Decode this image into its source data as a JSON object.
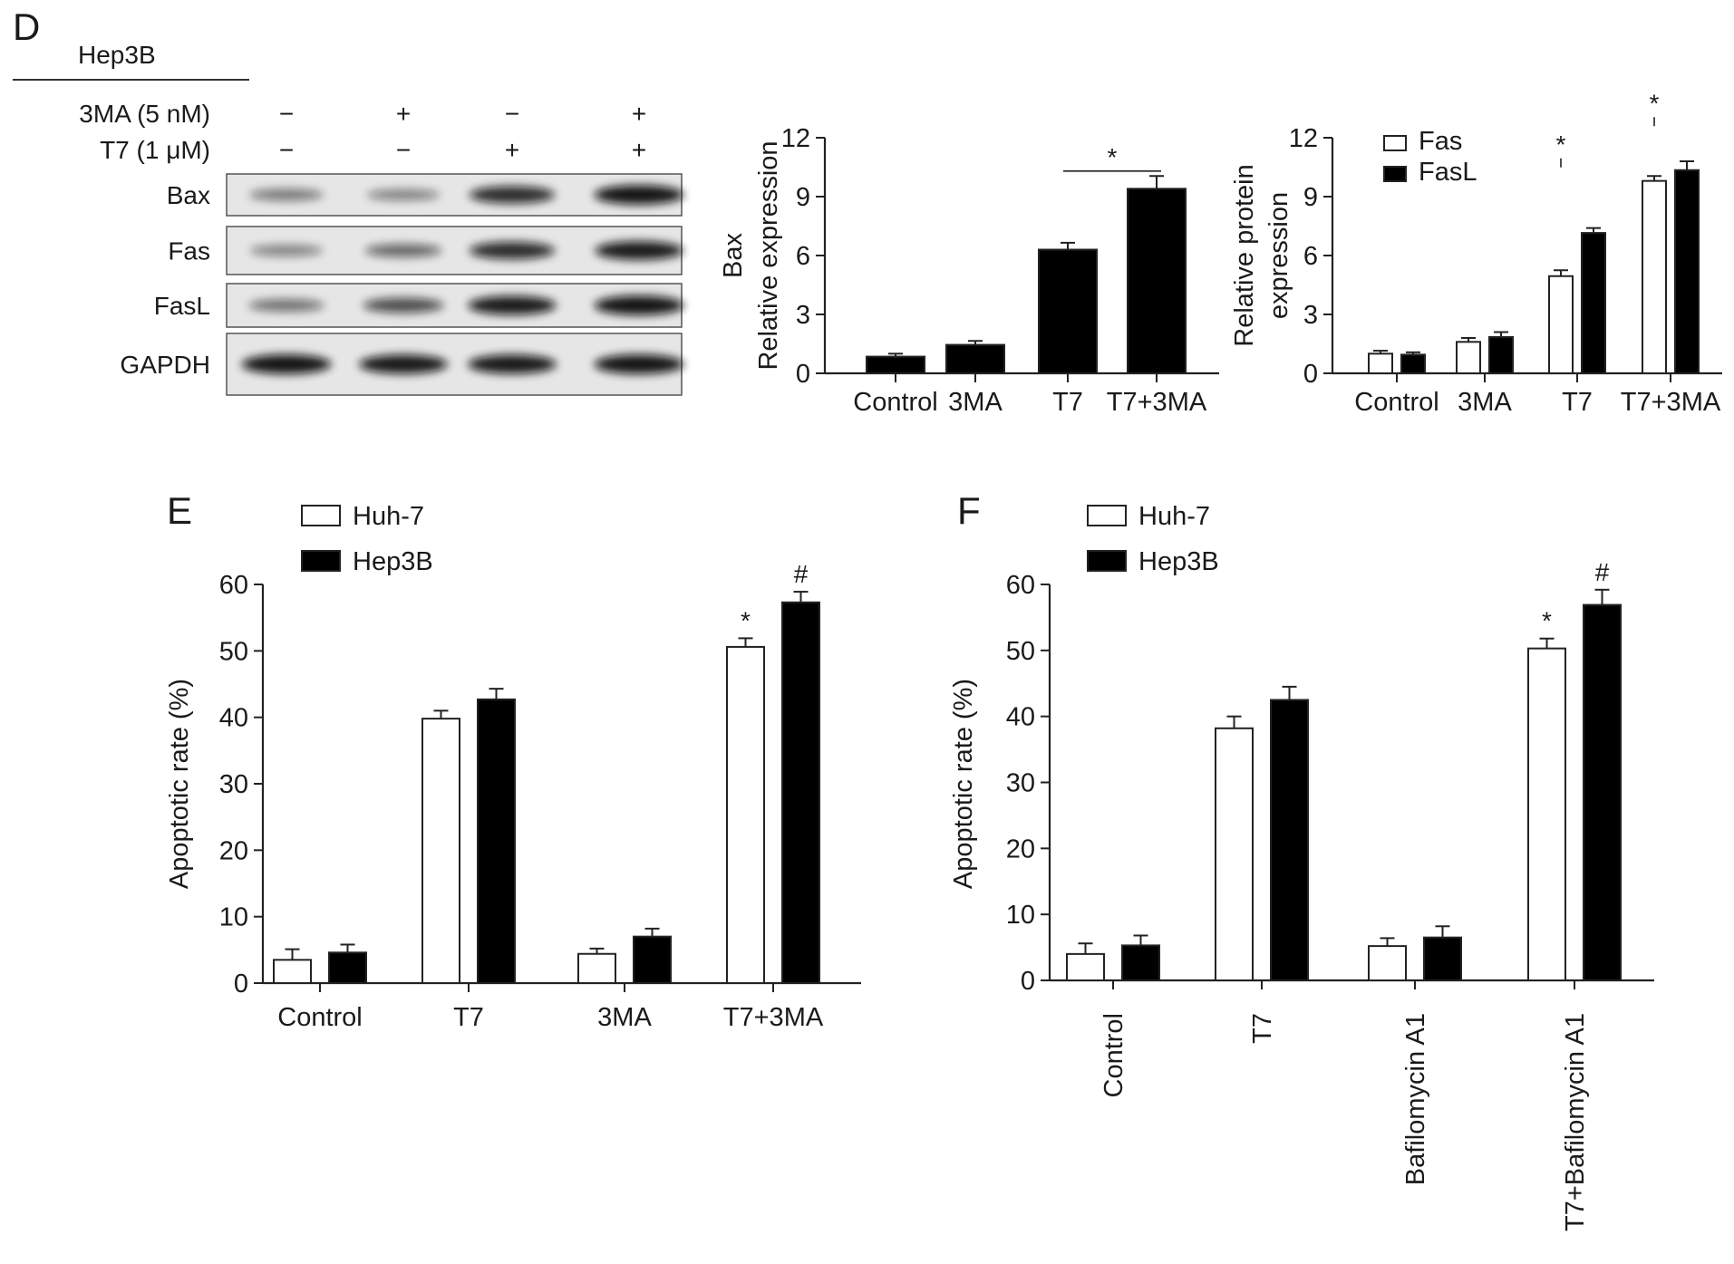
{
  "panel_labels": {
    "d": "D",
    "e": "E",
    "f": "F"
  },
  "western_blot": {
    "cell_line": "Hep3B",
    "conditions": [
      {
        "name": "3MA (5 nM)",
        "marks": [
          "−",
          "+",
          "−",
          "+"
        ]
      },
      {
        "name": "T7 (1 μM)",
        "marks": [
          "−",
          "−",
          "+",
          "+"
        ]
      }
    ],
    "blots": [
      {
        "name": "Bax",
        "intensity": [
          0.35,
          0.3,
          0.8,
          0.95
        ]
      },
      {
        "name": "Fas",
        "intensity": [
          0.3,
          0.45,
          0.8,
          0.9
        ]
      },
      {
        "name": "FasL",
        "intensity": [
          0.4,
          0.6,
          0.9,
          0.95
        ]
      },
      {
        "name": "GAPDH",
        "intensity": [
          0.95,
          0.92,
          0.92,
          0.95
        ]
      }
    ],
    "colors": {
      "band": "#111111",
      "background": "#e6e6e6"
    }
  },
  "chart_data": [
    {
      "id": "bax",
      "type": "bar",
      "categories": [
        "Control",
        "3MA",
        "T7",
        "T7+3MA"
      ],
      "ylabel_lines": [
        "Bax",
        "Relative expression"
      ],
      "ylim": [
        0,
        12
      ],
      "yticks": [
        0,
        3,
        6,
        9,
        12
      ],
      "series": [
        {
          "values": [
            0.85,
            1.45,
            6.3,
            9.4
          ],
          "errors": [
            0.15,
            0.2,
            0.35,
            0.65
          ],
          "fill": "#000000"
        }
      ],
      "significance": [
        {
          "label": "*",
          "from": 2,
          "to": 3,
          "y": 10.3,
          "bracket": "line"
        }
      ]
    },
    {
      "id": "fas",
      "type": "bar",
      "categories": [
        "Control",
        "3MA",
        "T7",
        "T7+3MA"
      ],
      "ylabel_lines": [
        "Relative protein",
        "expression"
      ],
      "ylim": [
        0,
        12
      ],
      "yticks": [
        0,
        3,
        6,
        9,
        12
      ],
      "legend_position": "top-left",
      "series": [
        {
          "name": "Fas",
          "values": [
            1.0,
            1.6,
            4.95,
            9.8
          ],
          "errors": [
            0.15,
            0.2,
            0.3,
            0.25
          ],
          "fill": "#ffffff"
        },
        {
          "name": "FasL",
          "values": [
            0.95,
            1.85,
            7.15,
            10.35
          ],
          "errors": [
            0.12,
            0.25,
            0.25,
            0.45
          ],
          "fill": "#000000"
        }
      ],
      "significance": [
        {
          "label": "*",
          "from": 2,
          "to": 3,
          "y": 10.95,
          "bracket": "tick"
        },
        {
          "label": "*",
          "from": 3,
          "to": 4,
          "y": 13.05,
          "bracket": "tick"
        }
      ]
    },
    {
      "id": "apop-3ma",
      "type": "bar",
      "categories": [
        "Control",
        "T7",
        "3MA",
        "T7+3MA"
      ],
      "ylabel": "Apoptotic rate (%)",
      "ylim": [
        0,
        60
      ],
      "yticks": [
        0,
        10,
        20,
        30,
        40,
        50,
        60
      ],
      "legend_position": "top-left",
      "series": [
        {
          "name": "Huh-7",
          "values": [
            3.5,
            39.8,
            4.4,
            50.6
          ],
          "errors": [
            1.6,
            1.2,
            0.8,
            1.3
          ],
          "fill": "#ffffff"
        },
        {
          "name": "Hep3B",
          "values": [
            4.6,
            42.7,
            7.0,
            57.3
          ],
          "errors": [
            1.2,
            1.6,
            1.2,
            1.6
          ],
          "fill": "#000000"
        }
      ],
      "marks": [
        {
          "label": "*",
          "series": 0,
          "category": 3
        },
        {
          "label": "#",
          "series": 1,
          "category": 3
        }
      ]
    },
    {
      "id": "apop-baf",
      "type": "bar",
      "categories": [
        "Control",
        "T7",
        "Bafilomycin A1",
        "T7+Bafilomycin A1"
      ],
      "ylabel": "Apoptotic rate (%)",
      "ylim": [
        0,
        60
      ],
      "yticks": [
        0,
        10,
        20,
        30,
        40,
        50,
        60
      ],
      "legend_position": "top-left",
      "rotated_categories": true,
      "series": [
        {
          "name": "Huh-7",
          "values": [
            4.0,
            38.2,
            5.2,
            50.3
          ],
          "errors": [
            1.6,
            1.8,
            1.2,
            1.5
          ],
          "fill": "#ffffff"
        },
        {
          "name": "Hep3B",
          "values": [
            5.3,
            42.5,
            6.5,
            56.9
          ],
          "errors": [
            1.5,
            2.0,
            1.7,
            2.3
          ],
          "fill": "#000000"
        }
      ],
      "marks": [
        {
          "label": "*",
          "series": 0,
          "category": 3
        },
        {
          "label": "#",
          "series": 1,
          "category": 3
        }
      ]
    }
  ]
}
